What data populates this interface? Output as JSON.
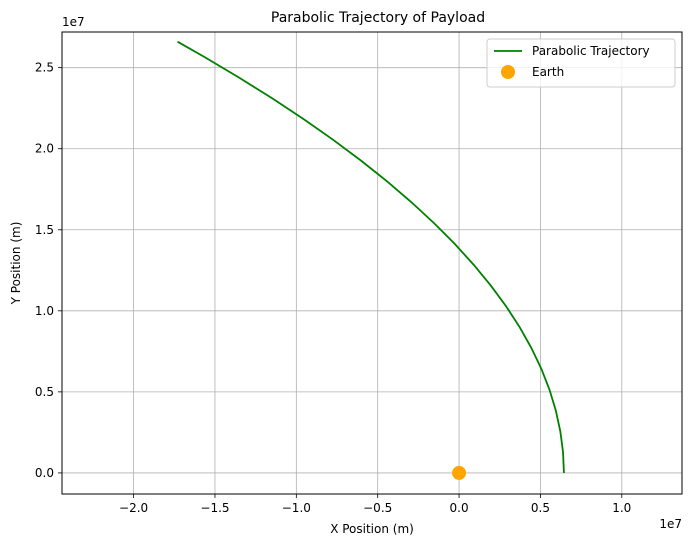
{
  "chart_data": {
    "type": "line",
    "title": "Parabolic Trajectory of Payload",
    "xlabel": "X Position (m)",
    "ylabel": "Y Position (m)",
    "x_offset_text": "1e7",
    "y_offset_text": "1e7",
    "xlim": [
      -2.44,
      1.37
    ],
    "ylim": [
      -0.13,
      2.72
    ],
    "x_ticks": [
      -2.0,
      -1.5,
      -1.0,
      -0.5,
      0.0,
      0.5,
      1.0
    ],
    "x_tick_labels": [
      "−2.0",
      "−1.5",
      "−1.0",
      "−0.5",
      "0.0",
      "0.5",
      "1.0"
    ],
    "y_ticks": [
      0.0,
      0.5,
      1.0,
      1.5,
      2.0,
      2.5
    ],
    "y_tick_labels": [
      "0.0",
      "0.5",
      "1.0",
      "1.5",
      "2.0",
      "2.5"
    ],
    "grid": true,
    "legend_position": "upper right",
    "series": [
      {
        "name": "Parabolic Trajectory",
        "kind": "line",
        "color": "#008000",
        "x": [
          0.6445,
          0.6389,
          0.6222,
          0.5944,
          0.5556,
          0.5057,
          0.4446,
          0.3725,
          0.2894,
          0.1951,
          0.0898,
          -0.0266,
          -0.154,
          -0.2924,
          -0.4418,
          -0.6023,
          -0.7738,
          -0.9563,
          -1.1498,
          -1.3543,
          -1.5698,
          -1.73
        ],
        "y": [
          0.0,
          0.1284,
          0.2569,
          0.3853,
          0.5137,
          0.6422,
          0.7706,
          0.8991,
          1.0275,
          1.1559,
          1.2844,
          1.4128,
          1.5412,
          1.6697,
          1.7981,
          1.9265,
          2.055,
          2.1834,
          2.3119,
          2.4403,
          2.5687,
          2.6601
        ]
      },
      {
        "name": "Earth",
        "kind": "scatter",
        "color": "#ffa500",
        "x": [
          0.0
        ],
        "y": [
          0.0
        ]
      }
    ]
  }
}
